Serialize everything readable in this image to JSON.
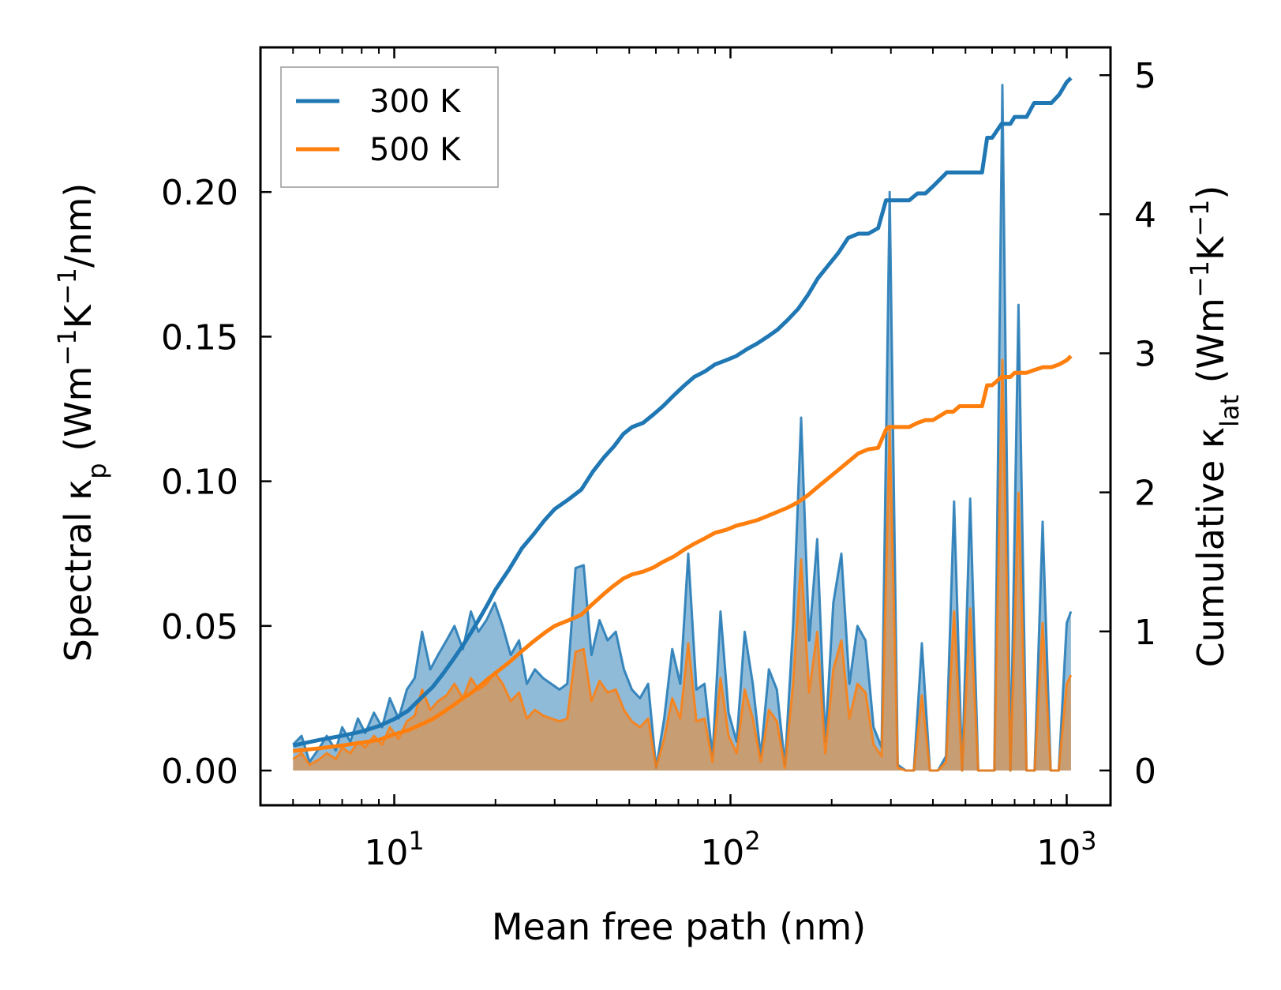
{
  "chart_data": {
    "type": "line",
    "title": "",
    "xlabel": "Mean free path (nm)",
    "x_scale": "log",
    "xlim": [
      4.0,
      1350
    ],
    "x_tick_labels": [
      {
        "value": 10,
        "base": "10",
        "exp": "1"
      },
      {
        "value": 100,
        "base": "10",
        "exp": "2"
      },
      {
        "value": 1000,
        "base": "10",
        "exp": "3"
      }
    ],
    "ylabel_left": {
      "pre": "Spectral κ",
      "sub": "p",
      "mid": " (Wm",
      "sup1": "−1",
      "mid2": "K",
      "sup2": "−1",
      "post": "/nm)"
    },
    "ylabel_right": {
      "pre": "Cumulative κ",
      "sub": "lat",
      "mid": " (Wm",
      "sup1": "−1",
      "mid2": "K",
      "sup2": "−1",
      "post": ")"
    },
    "ylim_left": [
      -0.012,
      0.25
    ],
    "ylim_right": [
      -0.25,
      5.2
    ],
    "yticks_left": [
      "0.00",
      "0.05",
      "0.10",
      "0.15",
      "0.20"
    ],
    "yticks_left_values": [
      0,
      0.05,
      0.1,
      0.15,
      0.2
    ],
    "yticks_right": [
      "0",
      "1",
      "2",
      "3",
      "4",
      "5"
    ],
    "yticks_right_values": [
      0,
      1,
      2,
      3,
      4,
      5
    ],
    "legend_position": "top-left",
    "legend": [
      {
        "label": "300 K",
        "color": "#1f77b4"
      },
      {
        "label": "500 K",
        "color": "#ff7f0e"
      }
    ],
    "series": [
      {
        "name": "300 K",
        "color": "#1f77b4",
        "axis": "left",
        "kind": "spectral",
        "x": [
          5,
          5.3,
          5.6,
          6,
          6.3,
          6.7,
          7,
          7.4,
          7.8,
          8.2,
          8.7,
          9.2,
          9.7,
          10.3,
          10.9,
          11.5,
          12.1,
          12.8,
          13.5,
          14.3,
          15.1,
          16,
          16.9,
          17.8,
          18.8,
          19.9,
          21,
          22.2,
          23.5,
          24.8,
          26.2,
          27.7,
          29.3,
          31,
          32.7,
          34.6,
          36.6,
          38.6,
          40.8,
          43.1,
          45.6,
          48.2,
          50.9,
          53.8,
          56.9,
          60.1,
          63.5,
          67.1,
          70.9,
          74.9,
          79.2,
          83.7,
          88.4,
          93.4,
          98.7,
          104.3,
          110.2,
          116.5,
          123.1,
          130.1,
          137.4,
          145.2,
          153.5,
          162.2,
          171.4,
          181.1,
          191.4,
          202.2,
          213.7,
          225.8,
          238.6,
          252.1,
          266.4,
          281.5,
          297.5,
          314.3,
          332.2,
          351,
          370.9,
          391.9,
          414.1,
          437.6,
          462.4,
          488.7,
          516.4,
          545.7,
          576.6,
          609.3,
          643.8,
          680.3,
          718.9,
          759.7,
          802.7,
          848.3,
          896.4,
          947.2,
          1000,
          1030
        ],
        "values": [
          0.009,
          0.012,
          0.003,
          0.008,
          0.012,
          0.007,
          0.015,
          0.01,
          0.018,
          0.013,
          0.02,
          0.015,
          0.025,
          0.018,
          0.028,
          0.032,
          0.048,
          0.035,
          0.04,
          0.045,
          0.05,
          0.042,
          0.055,
          0.048,
          0.052,
          0.058,
          0.05,
          0.04,
          0.045,
          0.03,
          0.035,
          0.032,
          0.03,
          0.028,
          0.03,
          0.07,
          0.071,
          0.04,
          0.052,
          0.045,
          0.048,
          0.035,
          0.028,
          0.025,
          0.03,
          0.001,
          0.018,
          0.042,
          0.03,
          0.075,
          0.028,
          0.03,
          0.005,
          0.055,
          0.02,
          0.01,
          0.048,
          0.03,
          0.005,
          0.035,
          0.028,
          0.002,
          0.05,
          0.122,
          0.045,
          0.08,
          0.01,
          0.058,
          0.075,
          0.03,
          0.05,
          0.045,
          0.015,
          0.008,
          0.2,
          0.002,
          0.0,
          0.0,
          0.044,
          0.0,
          0.0,
          0.005,
          0.093,
          0.0,
          0.094,
          0.0,
          0.0,
          0.0,
          0.237,
          0.0,
          0.161,
          0.0,
          0.0,
          0.086,
          0.0,
          0.0,
          0.051,
          0.055
        ]
      },
      {
        "name": "500 K",
        "color": "#ff7f0e",
        "axis": "left",
        "kind": "spectral",
        "x": [
          5,
          5.3,
          5.6,
          6,
          6.3,
          6.7,
          7,
          7.4,
          7.8,
          8.2,
          8.7,
          9.2,
          9.7,
          10.3,
          10.9,
          11.5,
          12.1,
          12.8,
          13.5,
          14.3,
          15.1,
          16,
          16.9,
          17.8,
          18.8,
          19.9,
          21,
          22.2,
          23.5,
          24.8,
          26.2,
          27.7,
          29.3,
          31,
          32.7,
          34.6,
          36.6,
          38.6,
          40.8,
          43.1,
          45.6,
          48.2,
          50.9,
          53.8,
          56.9,
          60.1,
          63.5,
          67.1,
          70.9,
          74.9,
          79.2,
          83.7,
          88.4,
          93.4,
          98.7,
          104.3,
          110.2,
          116.5,
          123.1,
          130.1,
          137.4,
          145.2,
          153.5,
          162.2,
          171.4,
          181.1,
          191.4,
          202.2,
          213.7,
          225.8,
          238.6,
          252.1,
          266.4,
          281.5,
          297.5,
          314.3,
          332.2,
          351,
          370.9,
          391.9,
          414.1,
          437.6,
          462.4,
          488.7,
          516.4,
          545.7,
          576.6,
          609.3,
          643.8,
          680.3,
          718.9,
          759.7,
          802.7,
          848.3,
          896.4,
          947.2,
          1000,
          1030
        ],
        "values": [
          0.004,
          0.006,
          0.002,
          0.004,
          0.006,
          0.004,
          0.008,
          0.006,
          0.01,
          0.008,
          0.012,
          0.009,
          0.015,
          0.011,
          0.017,
          0.019,
          0.028,
          0.021,
          0.024,
          0.026,
          0.03,
          0.025,
          0.032,
          0.028,
          0.03,
          0.034,
          0.03,
          0.024,
          0.027,
          0.018,
          0.021,
          0.019,
          0.018,
          0.017,
          0.018,
          0.041,
          0.042,
          0.024,
          0.031,
          0.027,
          0.028,
          0.021,
          0.017,
          0.015,
          0.018,
          0.001,
          0.011,
          0.025,
          0.018,
          0.044,
          0.017,
          0.018,
          0.003,
          0.032,
          0.012,
          0.006,
          0.028,
          0.018,
          0.003,
          0.021,
          0.017,
          0.001,
          0.03,
          0.073,
          0.027,
          0.048,
          0.006,
          0.035,
          0.045,
          0.018,
          0.03,
          0.027,
          0.009,
          0.005,
          0.118,
          0.001,
          0.0,
          0.0,
          0.026,
          0.0,
          0.0,
          0.003,
          0.055,
          0.0,
          0.056,
          0.0,
          0.0,
          0.0,
          0.142,
          0.0,
          0.096,
          0.0,
          0.0,
          0.051,
          0.0,
          0.0,
          0.03,
          0.033
        ]
      },
      {
        "name": "300 K",
        "color": "#1f77b4",
        "axis": "right",
        "kind": "cumulative",
        "x": [
          5,
          6,
          7,
          8,
          9,
          10,
          11,
          12,
          13,
          14,
          15,
          16,
          17,
          18,
          19,
          20,
          22,
          24,
          26,
          28,
          30,
          33,
          36,
          39,
          42,
          45,
          48,
          51,
          55,
          59,
          63,
          68,
          73,
          78,
          84,
          90,
          97,
          104,
          112,
          120,
          129,
          138,
          148,
          159,
          170,
          182,
          195,
          209,
          224,
          240,
          257,
          275,
          290,
          295,
          300,
          320,
          340,
          360,
          380,
          400,
          440,
          460,
          480,
          520,
          560,
          580,
          600,
          640,
          680,
          700,
          760,
          800,
          850,
          900,
          950,
          1000,
          1030
        ],
        "values": [
          0.18,
          0.22,
          0.25,
          0.28,
          0.32,
          0.37,
          0.43,
          0.52,
          0.6,
          0.7,
          0.8,
          0.9,
          1.0,
          1.1,
          1.2,
          1.3,
          1.45,
          1.6,
          1.7,
          1.8,
          1.88,
          1.95,
          2.02,
          2.15,
          2.25,
          2.33,
          2.42,
          2.47,
          2.5,
          2.56,
          2.62,
          2.7,
          2.77,
          2.83,
          2.87,
          2.92,
          2.95,
          2.98,
          3.03,
          3.07,
          3.12,
          3.17,
          3.24,
          3.32,
          3.42,
          3.54,
          3.63,
          3.72,
          3.83,
          3.86,
          3.86,
          3.9,
          4.1,
          4.1,
          4.1,
          4.1,
          4.1,
          4.15,
          4.15,
          4.2,
          4.3,
          4.3,
          4.3,
          4.3,
          4.3,
          4.55,
          4.55,
          4.65,
          4.65,
          4.7,
          4.7,
          4.8,
          4.8,
          4.8,
          4.86,
          4.95,
          4.98
        ]
      },
      {
        "name": "500 K",
        "color": "#ff7f0e",
        "axis": "right",
        "kind": "cumulative",
        "x": [
          5,
          6,
          7,
          8,
          9,
          10,
          11,
          12,
          13,
          14,
          15,
          16,
          17,
          18,
          19,
          20,
          22,
          24,
          26,
          28,
          30,
          33,
          36,
          39,
          42,
          45,
          48,
          51,
          55,
          59,
          63,
          68,
          73,
          78,
          84,
          90,
          97,
          104,
          112,
          120,
          129,
          138,
          148,
          159,
          170,
          182,
          195,
          209,
          224,
          240,
          257,
          275,
          290,
          295,
          300,
          320,
          340,
          360,
          380,
          400,
          440,
          460,
          480,
          520,
          560,
          580,
          600,
          640,
          680,
          700,
          760,
          800,
          850,
          900,
          950,
          1000,
          1030
        ],
        "values": [
          0.14,
          0.16,
          0.18,
          0.2,
          0.22,
          0.26,
          0.29,
          0.33,
          0.37,
          0.42,
          0.47,
          0.52,
          0.56,
          0.61,
          0.66,
          0.7,
          0.78,
          0.86,
          0.93,
          0.99,
          1.04,
          1.08,
          1.12,
          1.2,
          1.27,
          1.33,
          1.38,
          1.41,
          1.43,
          1.46,
          1.5,
          1.54,
          1.59,
          1.63,
          1.67,
          1.71,
          1.73,
          1.76,
          1.78,
          1.8,
          1.83,
          1.86,
          1.89,
          1.93,
          1.98,
          2.04,
          2.1,
          2.16,
          2.22,
          2.28,
          2.31,
          2.32,
          2.45,
          2.47,
          2.47,
          2.47,
          2.47,
          2.5,
          2.52,
          2.52,
          2.58,
          2.58,
          2.62,
          2.62,
          2.62,
          2.77,
          2.77,
          2.83,
          2.83,
          2.86,
          2.86,
          2.88,
          2.9,
          2.9,
          2.92,
          2.95,
          2.98
        ]
      }
    ]
  }
}
